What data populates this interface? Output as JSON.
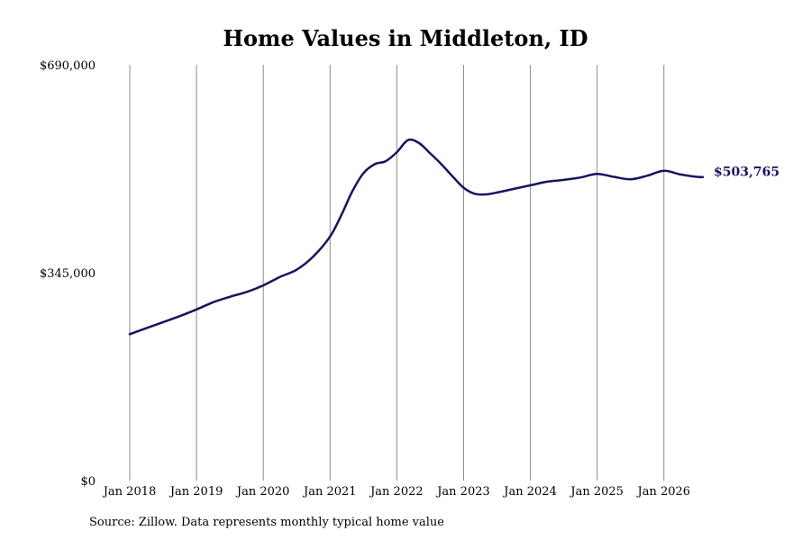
{
  "chart_data": {
    "type": "line",
    "title": "Home Values in Middleton, ID",
    "xlabel": "",
    "ylabel": "",
    "x_ticks": [
      "Jan 2018",
      "Jan 2019",
      "Jan 2020",
      "Jan 2021",
      "Jan 2022",
      "Jan 2023",
      "Jan 2024",
      "Jan 2025",
      "Jan 2026"
    ],
    "y_ticks": [
      {
        "value": 0,
        "label": "$0"
      },
      {
        "value": 345000,
        "label": "$345,000"
      },
      {
        "value": 690000,
        "label": "$690,000"
      }
    ],
    "ylim": [
      0,
      690000
    ],
    "xlim": [
      "2018-01",
      "2026-08"
    ],
    "grid": "vertical",
    "series": [
      {
        "color": "#15155e",
        "x": [
          "2018-01",
          "2018-04",
          "2018-07",
          "2018-10",
          "2019-01",
          "2019-04",
          "2019-07",
          "2019-10",
          "2020-01",
          "2020-04",
          "2020-07",
          "2020-10",
          "2021-01",
          "2021-03",
          "2021-05",
          "2021-07",
          "2021-09",
          "2021-11",
          "2022-01",
          "2022-03",
          "2022-05",
          "2022-07",
          "2022-09",
          "2022-11",
          "2023-01",
          "2023-03",
          "2023-05",
          "2023-07",
          "2023-10",
          "2024-01",
          "2024-04",
          "2024-07",
          "2024-10",
          "2025-01",
          "2025-04",
          "2025-07",
          "2025-10",
          "2026-01",
          "2026-04",
          "2026-07",
          "2026-08"
        ],
        "values": [
          243000,
          253000,
          263000,
          273000,
          284000,
          296000,
          305000,
          313000,
          324000,
          338000,
          350000,
          372000,
          405000,
          440000,
          480000,
          510000,
          525000,
          530000,
          545000,
          565000,
          560000,
          543000,
          525000,
          505000,
          486000,
          476000,
          475000,
          478000,
          484000,
          490000,
          496000,
          499000,
          503000,
          509000,
          504000,
          500000,
          506000,
          514000,
          508000,
          504000,
          503765
        ]
      }
    ],
    "end_label": "$503,765"
  },
  "footer": {
    "source": "Source: Zillow. Data represents monthly typical home value"
  }
}
